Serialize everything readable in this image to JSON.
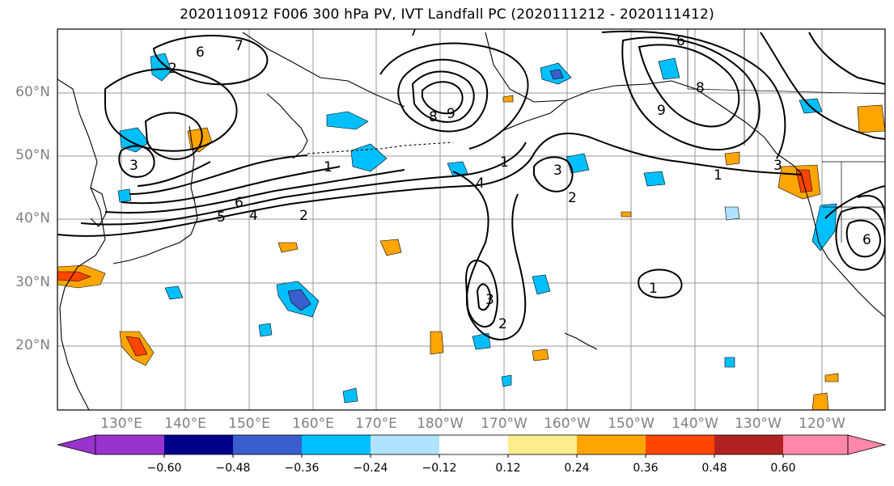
{
  "title": "2020110912 F006 300 hPa PV, IVT Landfall PC (2020111212 - 2020111412)",
  "map": {
    "lat_labels": [
      "60°N",
      "50°N",
      "40°N",
      "30°N",
      "20°N"
    ],
    "lon_labels": [
      "130°E",
      "140°E",
      "150°E",
      "160°E",
      "170°E",
      "180°W",
      "170°W",
      "160°W",
      "150°W",
      "140°W",
      "130°W",
      "120°W"
    ],
    "contour_labels": [
      "7",
      "6",
      "2",
      "8",
      "9",
      "7",
      "6",
      "8",
      "9",
      "3",
      "6",
      "5",
      "4",
      "2",
      "1",
      "4",
      "1",
      "3",
      "2",
      "1",
      "3",
      "2",
      "1",
      "3",
      "6"
    ],
    "colors": {
      "ocean": "#ffffff",
      "grid": "#9a9a9a",
      "contour": "#000000"
    }
  },
  "colorbar": {
    "ticks": [
      "−0.60",
      "−0.48",
      "−0.36",
      "−0.24",
      "−0.12",
      "0.12",
      "0.24",
      "0.36",
      "0.48",
      "0.60"
    ],
    "colors": [
      "#9933cc",
      "#00008b",
      "#3a5fcd",
      "#00bfff",
      "#b0e2ff",
      "#ffffff",
      "#ffec8b",
      "#ffa500",
      "#ff4500",
      "#b22222",
      "#ff88aa"
    ]
  }
}
